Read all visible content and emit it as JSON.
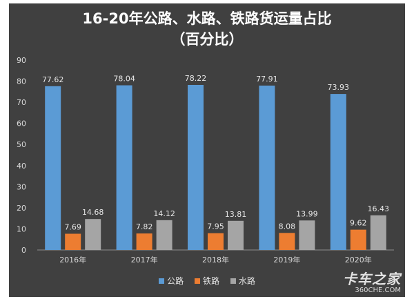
{
  "chart_data": {
    "type": "bar",
    "title": "16-20年公路、水路、铁路货运量占比",
    "subtitle": "（百分比）",
    "categories": [
      "2016年",
      "2017年",
      "2018年",
      "2019年",
      "2020年"
    ],
    "series": [
      {
        "name": "公路",
        "color": "#5b9bd5",
        "values": [
          77.62,
          78.04,
          78.22,
          77.91,
          73.93
        ]
      },
      {
        "name": "铁路",
        "color": "#ed7d31",
        "values": [
          7.69,
          7.82,
          7.95,
          8.08,
          9.62
        ]
      },
      {
        "name": "水路",
        "color": "#a5a5a5",
        "values": [
          14.68,
          14.12,
          13.81,
          13.99,
          16.43
        ]
      }
    ],
    "ylim": [
      0,
      90
    ],
    "yticks": [
      0,
      10,
      20,
      30,
      40,
      50,
      60,
      70,
      80,
      90
    ],
    "grid": false,
    "legend_position": "bottom",
    "background": "#404040"
  },
  "watermark": {
    "main": "卡车之家",
    "sub": "360CHE.COM"
  }
}
